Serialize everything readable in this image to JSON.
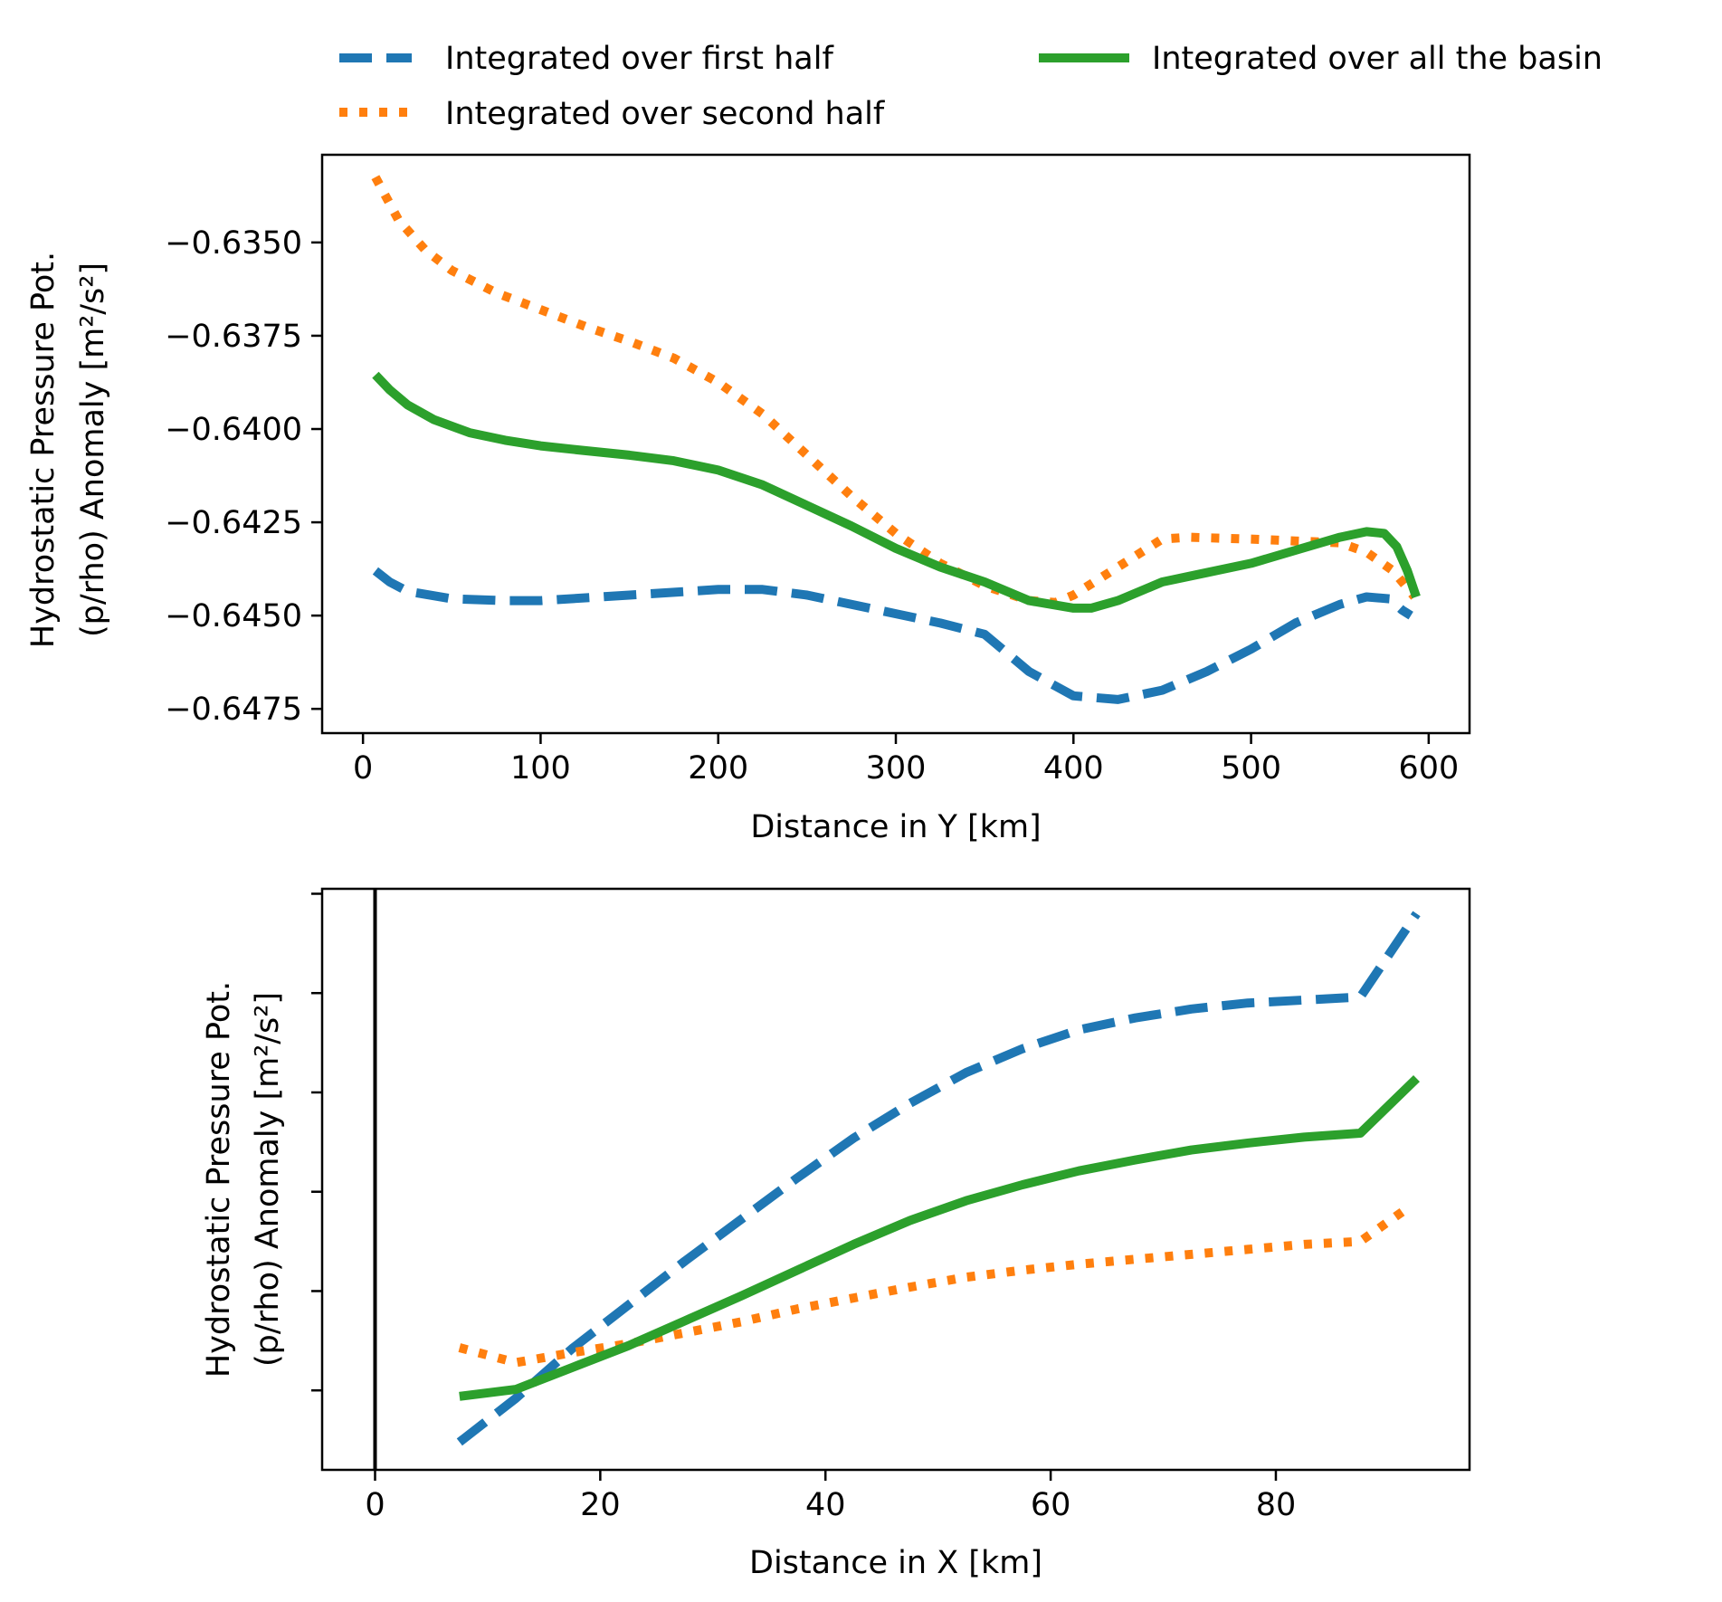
{
  "legend": {
    "placement": "top",
    "entries": [
      {
        "label": "Integrated over first half",
        "color": "#1f77b4",
        "style": "dashed"
      },
      {
        "label": "Integrated over second half",
        "color": "#ff7f0e",
        "style": "dotted"
      },
      {
        "label": "Integrated over all the basin",
        "color": "#2ca02c",
        "style": "solid"
      }
    ]
  },
  "chart_data": [
    {
      "type": "line",
      "xlabel": "Distance in Y [km]",
      "ylabel_line1": "Hydrostatic Pressure Pot.",
      "ylabel_line2": "(p/rho) Anomaly [m²/s²]",
      "xlim": [
        -23,
        623
      ],
      "ylim": [
        -0.64815,
        -0.63265
      ],
      "xticks": [
        0,
        100,
        200,
        300,
        400,
        500,
        600
      ],
      "xtick_labels": [
        "0",
        "100",
        "200",
        "300",
        "400",
        "500",
        "600"
      ],
      "yticks": [
        -0.635,
        -0.6375,
        -0.64,
        -0.6425,
        -0.645,
        -0.6475
      ],
      "ytick_labels": [
        "−0.6350",
        "−0.6375",
        "−0.6400",
        "−0.6425",
        "−0.6450",
        "−0.6475"
      ],
      "grid": false,
      "series": [
        {
          "name": "Integrated over first half",
          "color": "#1f77b4",
          "style": "dashed",
          "x": [
            7,
            15,
            25,
            50,
            80,
            100,
            150,
            200,
            225,
            250,
            300,
            325,
            350,
            375,
            400,
            425,
            450,
            475,
            500,
            525,
            550,
            565,
            578,
            585,
            590
          ],
          "y": [
            -0.6438,
            -0.6441,
            -0.64435,
            -0.64455,
            -0.6446,
            -0.6446,
            -0.64445,
            -0.6443,
            -0.6443,
            -0.64445,
            -0.64495,
            -0.6452,
            -0.6455,
            -0.6465,
            -0.64715,
            -0.64725,
            -0.647,
            -0.6465,
            -0.6459,
            -0.6452,
            -0.6447,
            -0.6445,
            -0.64455,
            -0.64485,
            -0.645
          ]
        },
        {
          "name": "Integrated over second half",
          "color": "#ff7f0e",
          "style": "dotted",
          "x": [
            7,
            20,
            35,
            50,
            75,
            100,
            125,
            150,
            175,
            200,
            225,
            250,
            275,
            300,
            325,
            350,
            375,
            390,
            400,
            425,
            450,
            465,
            500,
            525,
            550,
            565,
            580,
            592
          ],
          "y": [
            -0.63325,
            -0.6344,
            -0.6352,
            -0.63575,
            -0.63635,
            -0.6368,
            -0.63725,
            -0.63765,
            -0.6381,
            -0.63875,
            -0.6396,
            -0.6407,
            -0.6418,
            -0.6428,
            -0.6436,
            -0.6442,
            -0.6446,
            -0.64465,
            -0.64445,
            -0.6437,
            -0.64295,
            -0.6429,
            -0.64295,
            -0.643,
            -0.64305,
            -0.6433,
            -0.6438,
            -0.6445
          ]
        },
        {
          "name": "Integrated over all the basin",
          "color": "#2ca02c",
          "style": "solid",
          "x": [
            7,
            15,
            25,
            40,
            60,
            80,
            100,
            125,
            150,
            175,
            200,
            225,
            250,
            275,
            300,
            325,
            350,
            375,
            400,
            410,
            425,
            450,
            475,
            500,
            525,
            550,
            565,
            575,
            582,
            588,
            593
          ],
          "y": [
            -0.63855,
            -0.63895,
            -0.63935,
            -0.63975,
            -0.6401,
            -0.6403,
            -0.64045,
            -0.64058,
            -0.6407,
            -0.64085,
            -0.6411,
            -0.6415,
            -0.64205,
            -0.6426,
            -0.6432,
            -0.6437,
            -0.6441,
            -0.6446,
            -0.6448,
            -0.6448,
            -0.6446,
            -0.6441,
            -0.64385,
            -0.6436,
            -0.64325,
            -0.6429,
            -0.64275,
            -0.6428,
            -0.64315,
            -0.6438,
            -0.6445
          ]
        }
      ]
    },
    {
      "type": "line",
      "xlabel": "Distance in X [km]",
      "ylabel_line1": "Hydrostatic Pressure Pot.",
      "ylabel_line2": "(p/rho) Anomaly [m²/s²]",
      "xlim": [
        -4.7,
        97.2
      ],
      "ylim": [
        0,
        58.5
      ],
      "xticks": [
        0,
        20,
        40,
        60,
        80
      ],
      "xtick_labels": [
        "0",
        "20",
        "40",
        "60",
        "80"
      ],
      "yticks": [
        8,
        18,
        28,
        38,
        48,
        58
      ],
      "ytick_labels": [],
      "vline_x": 0,
      "grid": false,
      "series": [
        {
          "name": "Integrated over first half",
          "color": "#1f77b4",
          "style": "dashed",
          "x": [
            7.5,
            12.5,
            17.5,
            22.5,
            27.5,
            32.5,
            37.5,
            42.5,
            47.5,
            52.5,
            57.5,
            62.5,
            67.5,
            72.5,
            77.5,
            82.5,
            87.5,
            92.5
          ],
          "y": [
            2.8,
            7.2,
            12.2,
            16.6,
            21.0,
            25.2,
            29.4,
            33.4,
            36.9,
            40.0,
            42.4,
            44.3,
            45.5,
            46.4,
            47.0,
            47.3,
            47.6,
            56.0
          ]
        },
        {
          "name": "Integrated over second half",
          "color": "#ff7f0e",
          "style": "dotted",
          "x": [
            7.5,
            12.5,
            17.5,
            22.5,
            27.5,
            32.5,
            37.5,
            42.5,
            47.5,
            52.5,
            57.5,
            62.5,
            67.5,
            72.5,
            77.5,
            82.5,
            87.5,
            91.5
          ],
          "y": [
            12.3,
            10.8,
            11.8,
            12.7,
            13.8,
            14.9,
            16.2,
            17.3,
            18.4,
            19.4,
            20.1,
            20.7,
            21.2,
            21.7,
            22.2,
            22.7,
            23.0,
            26.2
          ]
        },
        {
          "name": "Integrated over all the basin",
          "color": "#2ca02c",
          "style": "solid",
          "x": [
            7.5,
            12.5,
            17.5,
            22.5,
            27.5,
            32.5,
            37.5,
            42.5,
            47.5,
            52.5,
            57.5,
            62.5,
            67.5,
            72.5,
            77.5,
            82.5,
            87.5,
            92.5
          ],
          "y": [
            7.4,
            8.1,
            10.3,
            12.5,
            15.0,
            17.5,
            20.1,
            22.7,
            25.1,
            27.1,
            28.7,
            30.1,
            31.2,
            32.2,
            32.9,
            33.5,
            33.9,
            39.4
          ]
        }
      ]
    }
  ]
}
